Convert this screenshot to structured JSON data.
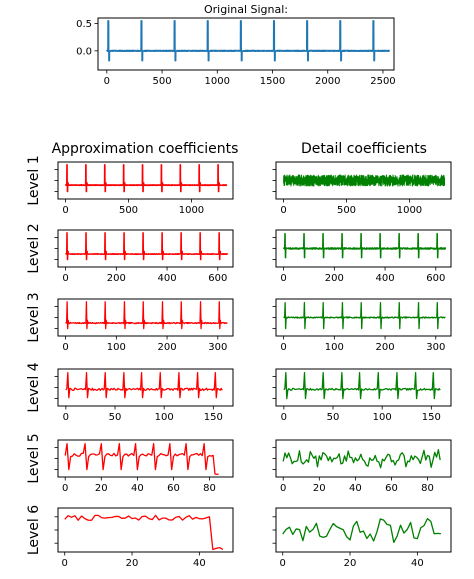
{
  "page": {
    "background": "#ffffff"
  },
  "headings": {
    "approximation": "Approximation coefficients",
    "detail": "Detail coefficients"
  },
  "chart_data": [
    {
      "type": "line",
      "title": "Original Signal:",
      "color": "#1f77b4",
      "xlim": [
        -80,
        2600
      ],
      "ylim": [
        -0.35,
        0.6
      ],
      "xticks": [
        0,
        500,
        1000,
        1500,
        2000,
        2500
      ],
      "yticks": [
        0.5,
        0.0
      ],
      "ytick_labels": [
        "0.5",
        "0.0"
      ],
      "pattern": {
        "kind": "ecg",
        "length": 2560,
        "period": 300,
        "phase": 10,
        "peak": 0.55,
        "base": 0.0,
        "dip": -0.18,
        "noise": 0.01
      }
    },
    {
      "type": "line",
      "row_label": "Level 1",
      "column": "Approximation coefficients",
      "color": "#ff0000",
      "xlim": [
        -60,
        1330
      ],
      "ylim": [
        -1,
        1
      ],
      "xticks": [
        0,
        500,
        1000
      ],
      "yticks": [
        0.6,
        0,
        -0.6
      ],
      "show_ytick_labels": false,
      "pattern": {
        "kind": "ecg",
        "length": 1280,
        "period": 150,
        "phase": 10,
        "peak": 0.85,
        "base": -0.25,
        "dip": -0.6,
        "noise": 0.02
      }
    },
    {
      "type": "line",
      "row_label": "Level 1",
      "column": "Detail coefficients",
      "color": "#008000",
      "xlim": [
        -60,
        1330
      ],
      "ylim": [
        -1,
        1
      ],
      "xticks": [
        0,
        500,
        1000
      ],
      "yticks": [
        0.6,
        0,
        -0.6
      ],
      "show_ytick_labels": false,
      "pattern": {
        "kind": "noise",
        "length": 1280,
        "amp": 0.3
      }
    },
    {
      "type": "line",
      "row_label": "Level 2",
      "column": "Approximation coefficients",
      "color": "#ff0000",
      "xlim": [
        -30,
        660
      ],
      "ylim": [
        -1,
        1
      ],
      "xticks": [
        0,
        200,
        400,
        600
      ],
      "yticks": [
        0.6,
        0,
        -0.6
      ],
      "show_ytick_labels": false,
      "pattern": {
        "kind": "ecg",
        "length": 640,
        "period": 75,
        "phase": 5,
        "peak": 0.85,
        "base": -0.3,
        "dip": -0.6,
        "noise": 0.02
      }
    },
    {
      "type": "line",
      "row_label": "Level 2",
      "column": "Detail coefficients",
      "color": "#008000",
      "xlim": [
        -30,
        660
      ],
      "ylim": [
        -1,
        1
      ],
      "xticks": [
        0,
        200,
        400,
        600
      ],
      "yticks": [
        0.6,
        0,
        -0.6
      ],
      "show_ytick_labels": false,
      "pattern": {
        "kind": "spikes",
        "length": 640,
        "period": 75,
        "phase": 5,
        "base": 0.0,
        "up": 0.8,
        "down": -0.5,
        "noise": 0.04
      }
    },
    {
      "type": "line",
      "row_label": "Level 3",
      "column": "Approximation coefficients",
      "color": "#ff0000",
      "xlim": [
        -15,
        330
      ],
      "ylim": [
        -1,
        1
      ],
      "xticks": [
        0,
        100,
        200,
        300
      ],
      "yticks": [
        0.6,
        0,
        -0.6
      ],
      "show_ytick_labels": false,
      "pattern": {
        "kind": "ecg",
        "length": 320,
        "period": 37.5,
        "phase": 3,
        "peak": 0.85,
        "base": -0.3,
        "dip": -0.6,
        "noise": 0.03
      }
    },
    {
      "type": "line",
      "row_label": "Level 3",
      "column": "Detail coefficients",
      "color": "#008000",
      "xlim": [
        -15,
        330
      ],
      "ylim": [
        -1,
        1
      ],
      "xticks": [
        0,
        100,
        200,
        300
      ],
      "yticks": [
        0.6,
        0,
        -0.6
      ],
      "show_ytick_labels": false,
      "pattern": {
        "kind": "spikes",
        "length": 320,
        "period": 37.5,
        "phase": 3,
        "base": 0.0,
        "up": 0.8,
        "down": -0.6,
        "noise": 0.03
      }
    },
    {
      "type": "line",
      "row_label": "Level 4",
      "column": "Approximation coefficients",
      "color": "#ff0000",
      "xlim": [
        -8,
        170
      ],
      "ylim": [
        -1,
        1
      ],
      "xticks": [
        0,
        50,
        100,
        150
      ],
      "yticks": [
        0.6,
        0,
        -0.6
      ],
      "show_ytick_labels": false,
      "pattern": {
        "kind": "ecg",
        "length": 160,
        "period": 18.75,
        "phase": 2,
        "peak": 0.8,
        "base": -0.1,
        "dip": -0.55,
        "noise": 0.06
      }
    },
    {
      "type": "line",
      "row_label": "Level 4",
      "column": "Detail coefficients",
      "color": "#008000",
      "xlim": [
        -8,
        170
      ],
      "ylim": [
        -1,
        1
      ],
      "xticks": [
        0,
        50,
        100,
        150
      ],
      "yticks": [
        0.6,
        0,
        -0.6
      ],
      "show_ytick_labels": false,
      "pattern": {
        "kind": "spikes",
        "length": 160,
        "period": 18.75,
        "phase": 2,
        "base": -0.1,
        "up": 0.8,
        "down": -0.6,
        "noise": 0.05
      }
    },
    {
      "type": "line",
      "row_label": "Level 5",
      "column": "Approximation coefficients",
      "color": "#ff0000",
      "xlim": [
        -4,
        93
      ],
      "ylim": [
        -1,
        1
      ],
      "xticks": [
        0,
        20,
        40,
        60,
        80
      ],
      "yticks": [
        0.6,
        0,
        -0.6
      ],
      "show_ytick_labels": false,
      "pattern": {
        "kind": "ecg",
        "length": 86,
        "period": 9.4,
        "phase": 1,
        "peak": 0.8,
        "base": 0.2,
        "dip": -0.6,
        "noise": 0.08,
        "tail_drop": -0.85,
        "tail_start": 83
      }
    },
    {
      "type": "line",
      "row_label": "Level 5",
      "column": "Detail coefficients",
      "color": "#008000",
      "xlim": [
        -4,
        93
      ],
      "ylim": [
        -1,
        1
      ],
      "xticks": [
        0,
        20,
        40,
        60,
        80
      ],
      "yticks": [
        0.6,
        0,
        -0.6
      ],
      "show_ytick_labels": false,
      "pattern": {
        "kind": "wiggle",
        "length": 88,
        "amp": 0.5,
        "seed": 5
      }
    },
    {
      "type": "line",
      "row_label": "Level 6",
      "column": "Approximation coefficients",
      "color": "#ff0000",
      "xlim": [
        -2,
        50
      ],
      "ylim": [
        -1,
        1
      ],
      "xticks": [
        0,
        20,
        40
      ],
      "yticks": [
        0.6,
        0,
        -0.6
      ],
      "show_ytick_labels": false,
      "pattern": {
        "kind": "plateau",
        "length": 48,
        "level": 0.55,
        "amp": 0.12,
        "tail_drop": -0.85,
        "tail_start": 44
      }
    },
    {
      "type": "line",
      "row_label": "Level 6",
      "column": "Detail coefficients",
      "color": "#008000",
      "xlim": [
        -2,
        50
      ],
      "ylim": [
        -1,
        1
      ],
      "xticks": [
        0,
        20,
        40
      ],
      "yticks": [
        0.6,
        0,
        -0.6
      ],
      "show_ytick_labels": false,
      "pattern": {
        "kind": "wiggle",
        "length": 48,
        "amp": 0.6,
        "seed": 11
      }
    }
  ]
}
